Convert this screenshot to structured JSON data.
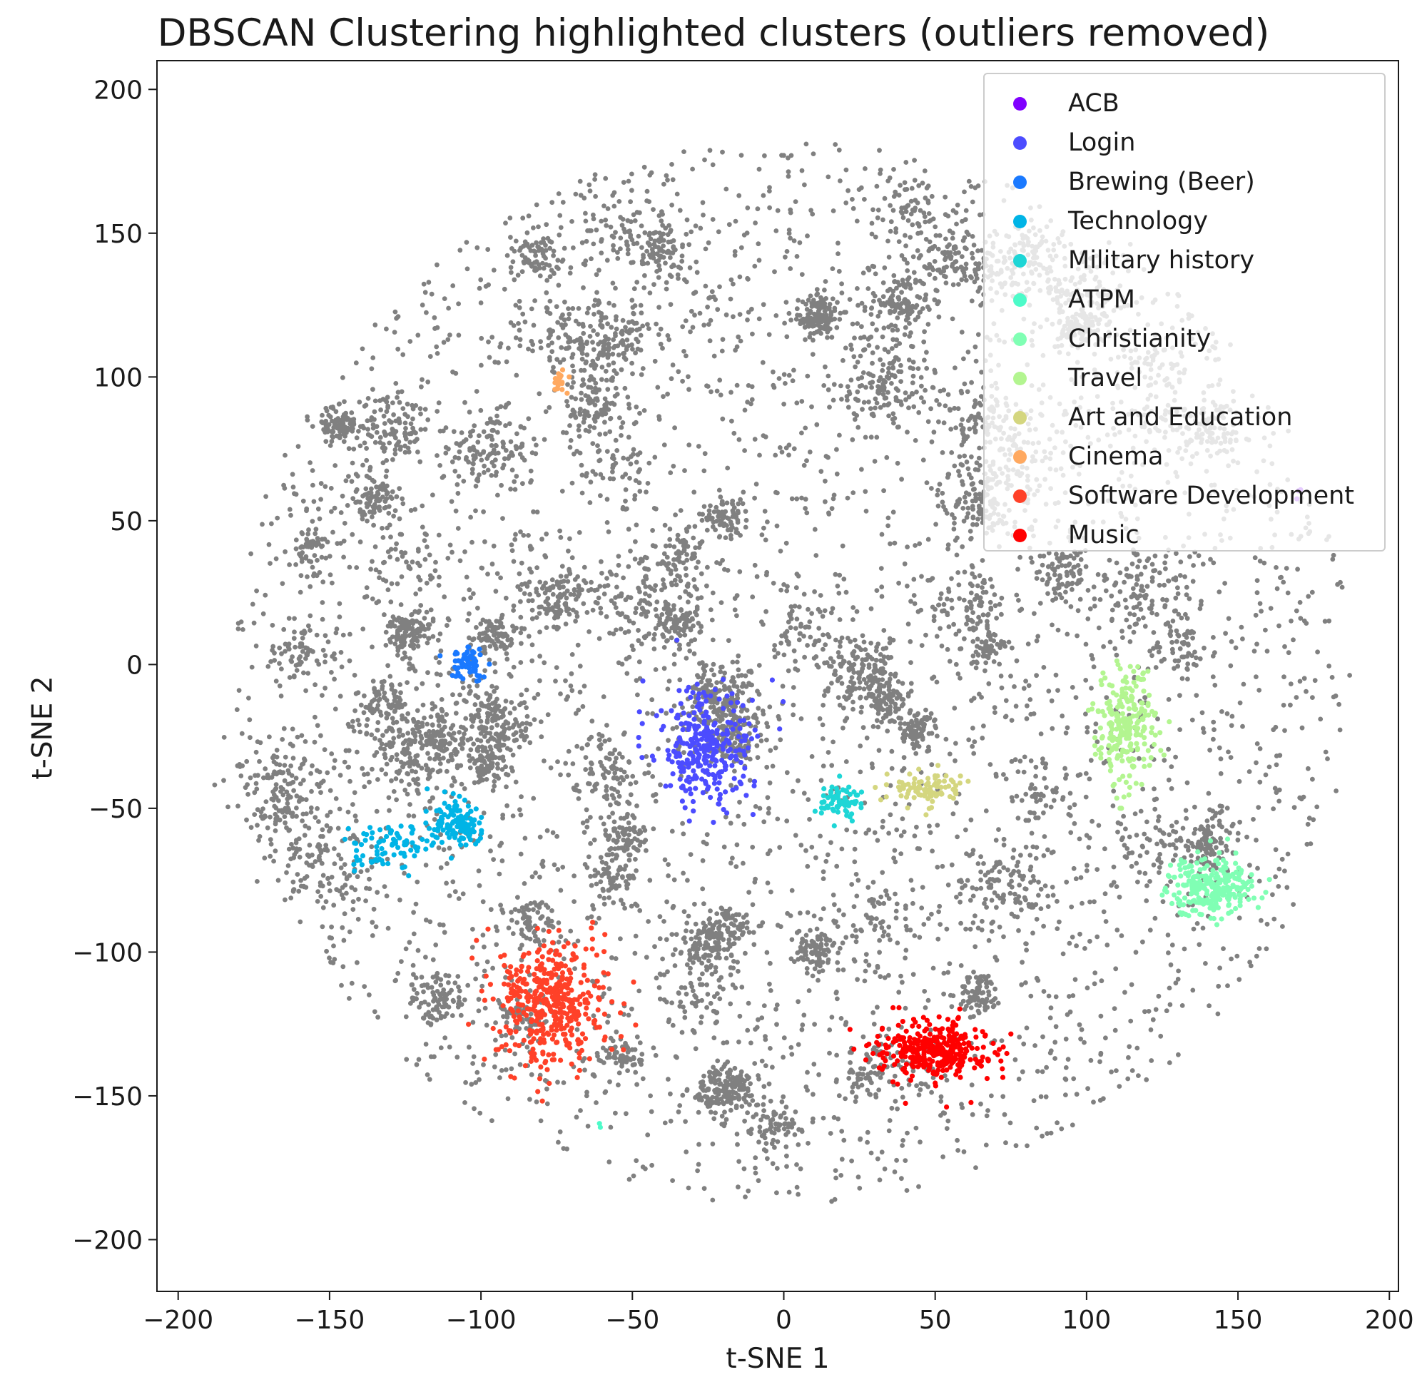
{
  "chart_data": {
    "type": "scatter",
    "title": "DBSCAN Clustering highlighted clusters (outliers removed)",
    "xlabel": "t-SNE 1",
    "ylabel": "t-SNE 2",
    "xlim": [
      -207,
      203
    ],
    "ylim": [
      -218,
      210
    ],
    "xticks": [
      -200,
      -150,
      -100,
      -50,
      0,
      50,
      100,
      150,
      200
    ],
    "yticks": [
      200,
      150,
      100,
      50,
      0,
      -50,
      -100,
      -150,
      -200
    ],
    "xtick_labels": [
      "−200",
      "−150",
      "−100",
      "−50",
      "0",
      "50",
      "100",
      "150",
      "200"
    ],
    "ytick_labels": [
      "200",
      "150",
      "100",
      "50",
      "0",
      "−50",
      "−100",
      "−150",
      "−200"
    ],
    "grid": false,
    "legend_position": "top-right",
    "background_color": "#808080",
    "background_description": "Thousands of gray points forming a roughly circular cloud of radius ~190 centered near (0, -5), with many dense sub-clumps.",
    "series": [
      {
        "name": "ACB",
        "color": "#8000ff",
        "center": [
          170,
          60
        ],
        "spread": [
          1,
          1
        ],
        "count": 3
      },
      {
        "name": "Login",
        "color": "#4c4cff",
        "center": [
          -26,
          -30
        ],
        "spread": [
          8,
          10
        ],
        "count": 300
      },
      {
        "name": "Brewing (Beer)",
        "color": "#1a79ff",
        "center": [
          -104,
          0
        ],
        "spread": [
          3,
          3
        ],
        "count": 60
      },
      {
        "name": "Technology",
        "color": "#00b4e6",
        "center": [
          -107,
          -56
        ],
        "spread": [
          5,
          4
        ],
        "count": 120,
        "extra_center": [
          -130,
          -64
        ],
        "extra_spread": [
          6,
          4
        ],
        "extra_count": 80
      },
      {
        "name": "Military history",
        "color": "#1ed6d6",
        "center": [
          18,
          -47
        ],
        "spread": [
          4,
          3
        ],
        "count": 70
      },
      {
        "name": "ATPM",
        "color": "#4dfbc9",
        "center": [
          -60,
          -160
        ],
        "spread": [
          0.5,
          0.5
        ],
        "count": 2
      },
      {
        "name": "Christianity",
        "color": "#80ffb4",
        "center": [
          141,
          -77
        ],
        "spread": [
          7,
          5
        ],
        "count": 260
      },
      {
        "name": "Travel",
        "color": "#b3f590",
        "center": [
          113,
          -22
        ],
        "spread": [
          5,
          10
        ],
        "count": 240
      },
      {
        "name": "Art and Education",
        "color": "#d4d67f",
        "center": [
          47,
          -43
        ],
        "spread": [
          6,
          3
        ],
        "count": 90
      },
      {
        "name": "Cinema",
        "color": "#ffa960",
        "center": [
          -74,
          99
        ],
        "spread": [
          1.5,
          2.5
        ],
        "count": 20
      },
      {
        "name": "Software Development",
        "color": "#ff4128",
        "center": [
          -76,
          -118
        ],
        "spread": [
          9,
          11
        ],
        "count": 420
      },
      {
        "name": "Music",
        "color": "#ff0000",
        "center": [
          50,
          -134
        ],
        "spread": [
          9,
          5
        ],
        "count": 340
      }
    ]
  }
}
